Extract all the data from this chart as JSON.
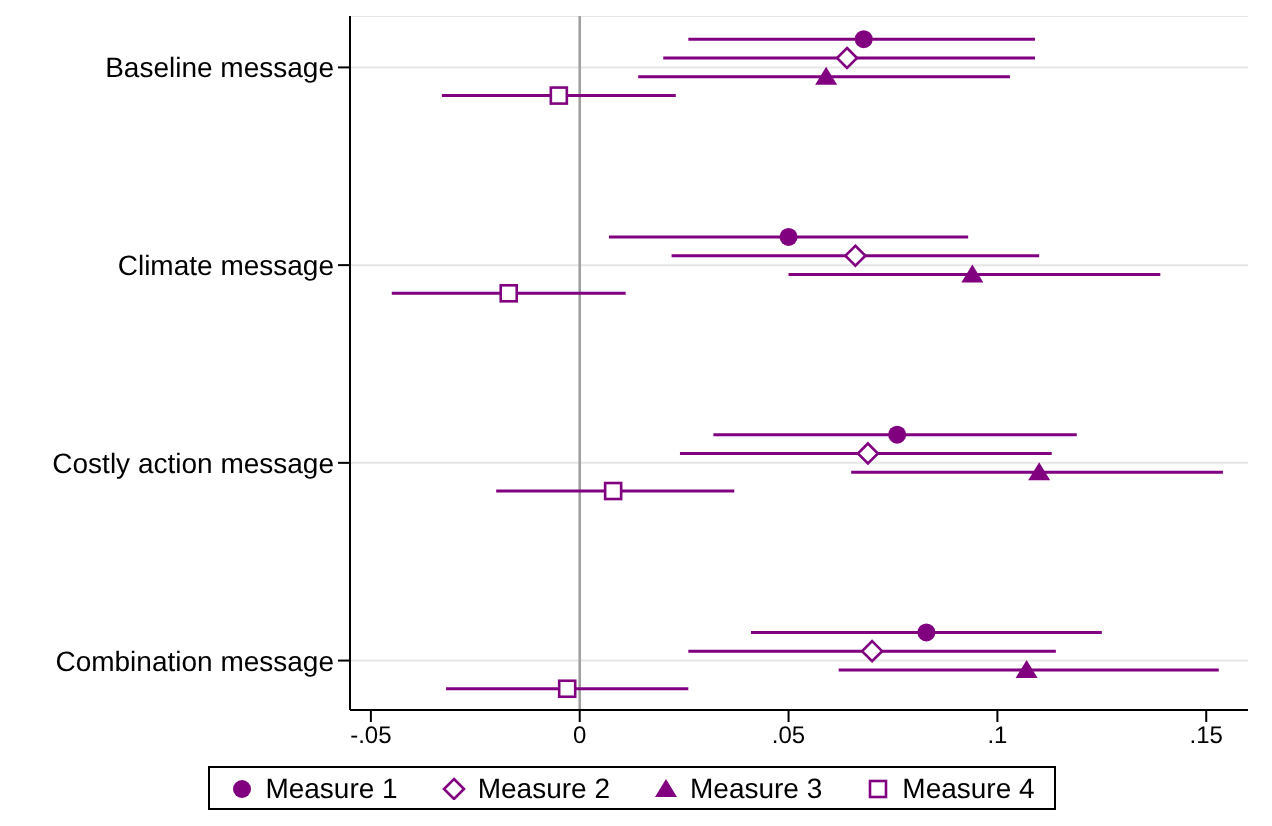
{
  "chart_data": {
    "type": "scatter",
    "orientation": "horizontal",
    "categories": [
      "Baseline message",
      "Climate message",
      "Costly action message",
      "Combination message"
    ],
    "series": [
      {
        "name": "Measure 1",
        "color": "#800080",
        "marker": "circle",
        "values": [
          0.068,
          0.05,
          0.076,
          0.083
        ],
        "errors": [
          [
            0.026,
            0.109
          ],
          [
            0.007,
            0.093
          ],
          [
            0.032,
            0.119
          ],
          [
            0.041,
            0.125
          ]
        ]
      },
      {
        "name": "Measure 2",
        "color": "#800080",
        "marker": "diamond",
        "values": [
          0.064,
          0.066,
          0.069,
          0.07
        ],
        "errors": [
          [
            0.02,
            0.109
          ],
          [
            0.022,
            0.11
          ],
          [
            0.024,
            0.113
          ],
          [
            0.026,
            0.114
          ]
        ]
      },
      {
        "name": "Measure 3",
        "color": "#800080",
        "marker": "triangle",
        "values": [
          0.059,
          0.094,
          0.11,
          0.107
        ],
        "errors": [
          [
            0.014,
            0.103
          ],
          [
            0.05,
            0.139
          ],
          [
            0.065,
            0.154
          ],
          [
            0.062,
            0.153
          ]
        ]
      },
      {
        "name": "Measure 4",
        "color": "#800080",
        "marker": "square",
        "values": [
          -0.005,
          -0.017,
          0.008,
          -0.003
        ],
        "errors": [
          [
            -0.033,
            0.023
          ],
          [
            -0.045,
            0.011
          ],
          [
            -0.02,
            0.037
          ],
          [
            -0.032,
            0.026
          ]
        ]
      }
    ],
    "xlim": [
      -0.055,
      0.16
    ],
    "xticks": [
      {
        "value": -0.05,
        "label": "-.05"
      },
      0,
      {
        "value": 0.05,
        "label": ".05"
      },
      {
        "value": 0.1,
        "label": ".1"
      },
      {
        "value": 0.15,
        "label": ".15"
      }
    ],
    "ref_lines": [
      {
        "axis": "x",
        "value": 0,
        "color": "#a0a0a0"
      }
    ],
    "grid": "y",
    "legend": "bottom"
  }
}
